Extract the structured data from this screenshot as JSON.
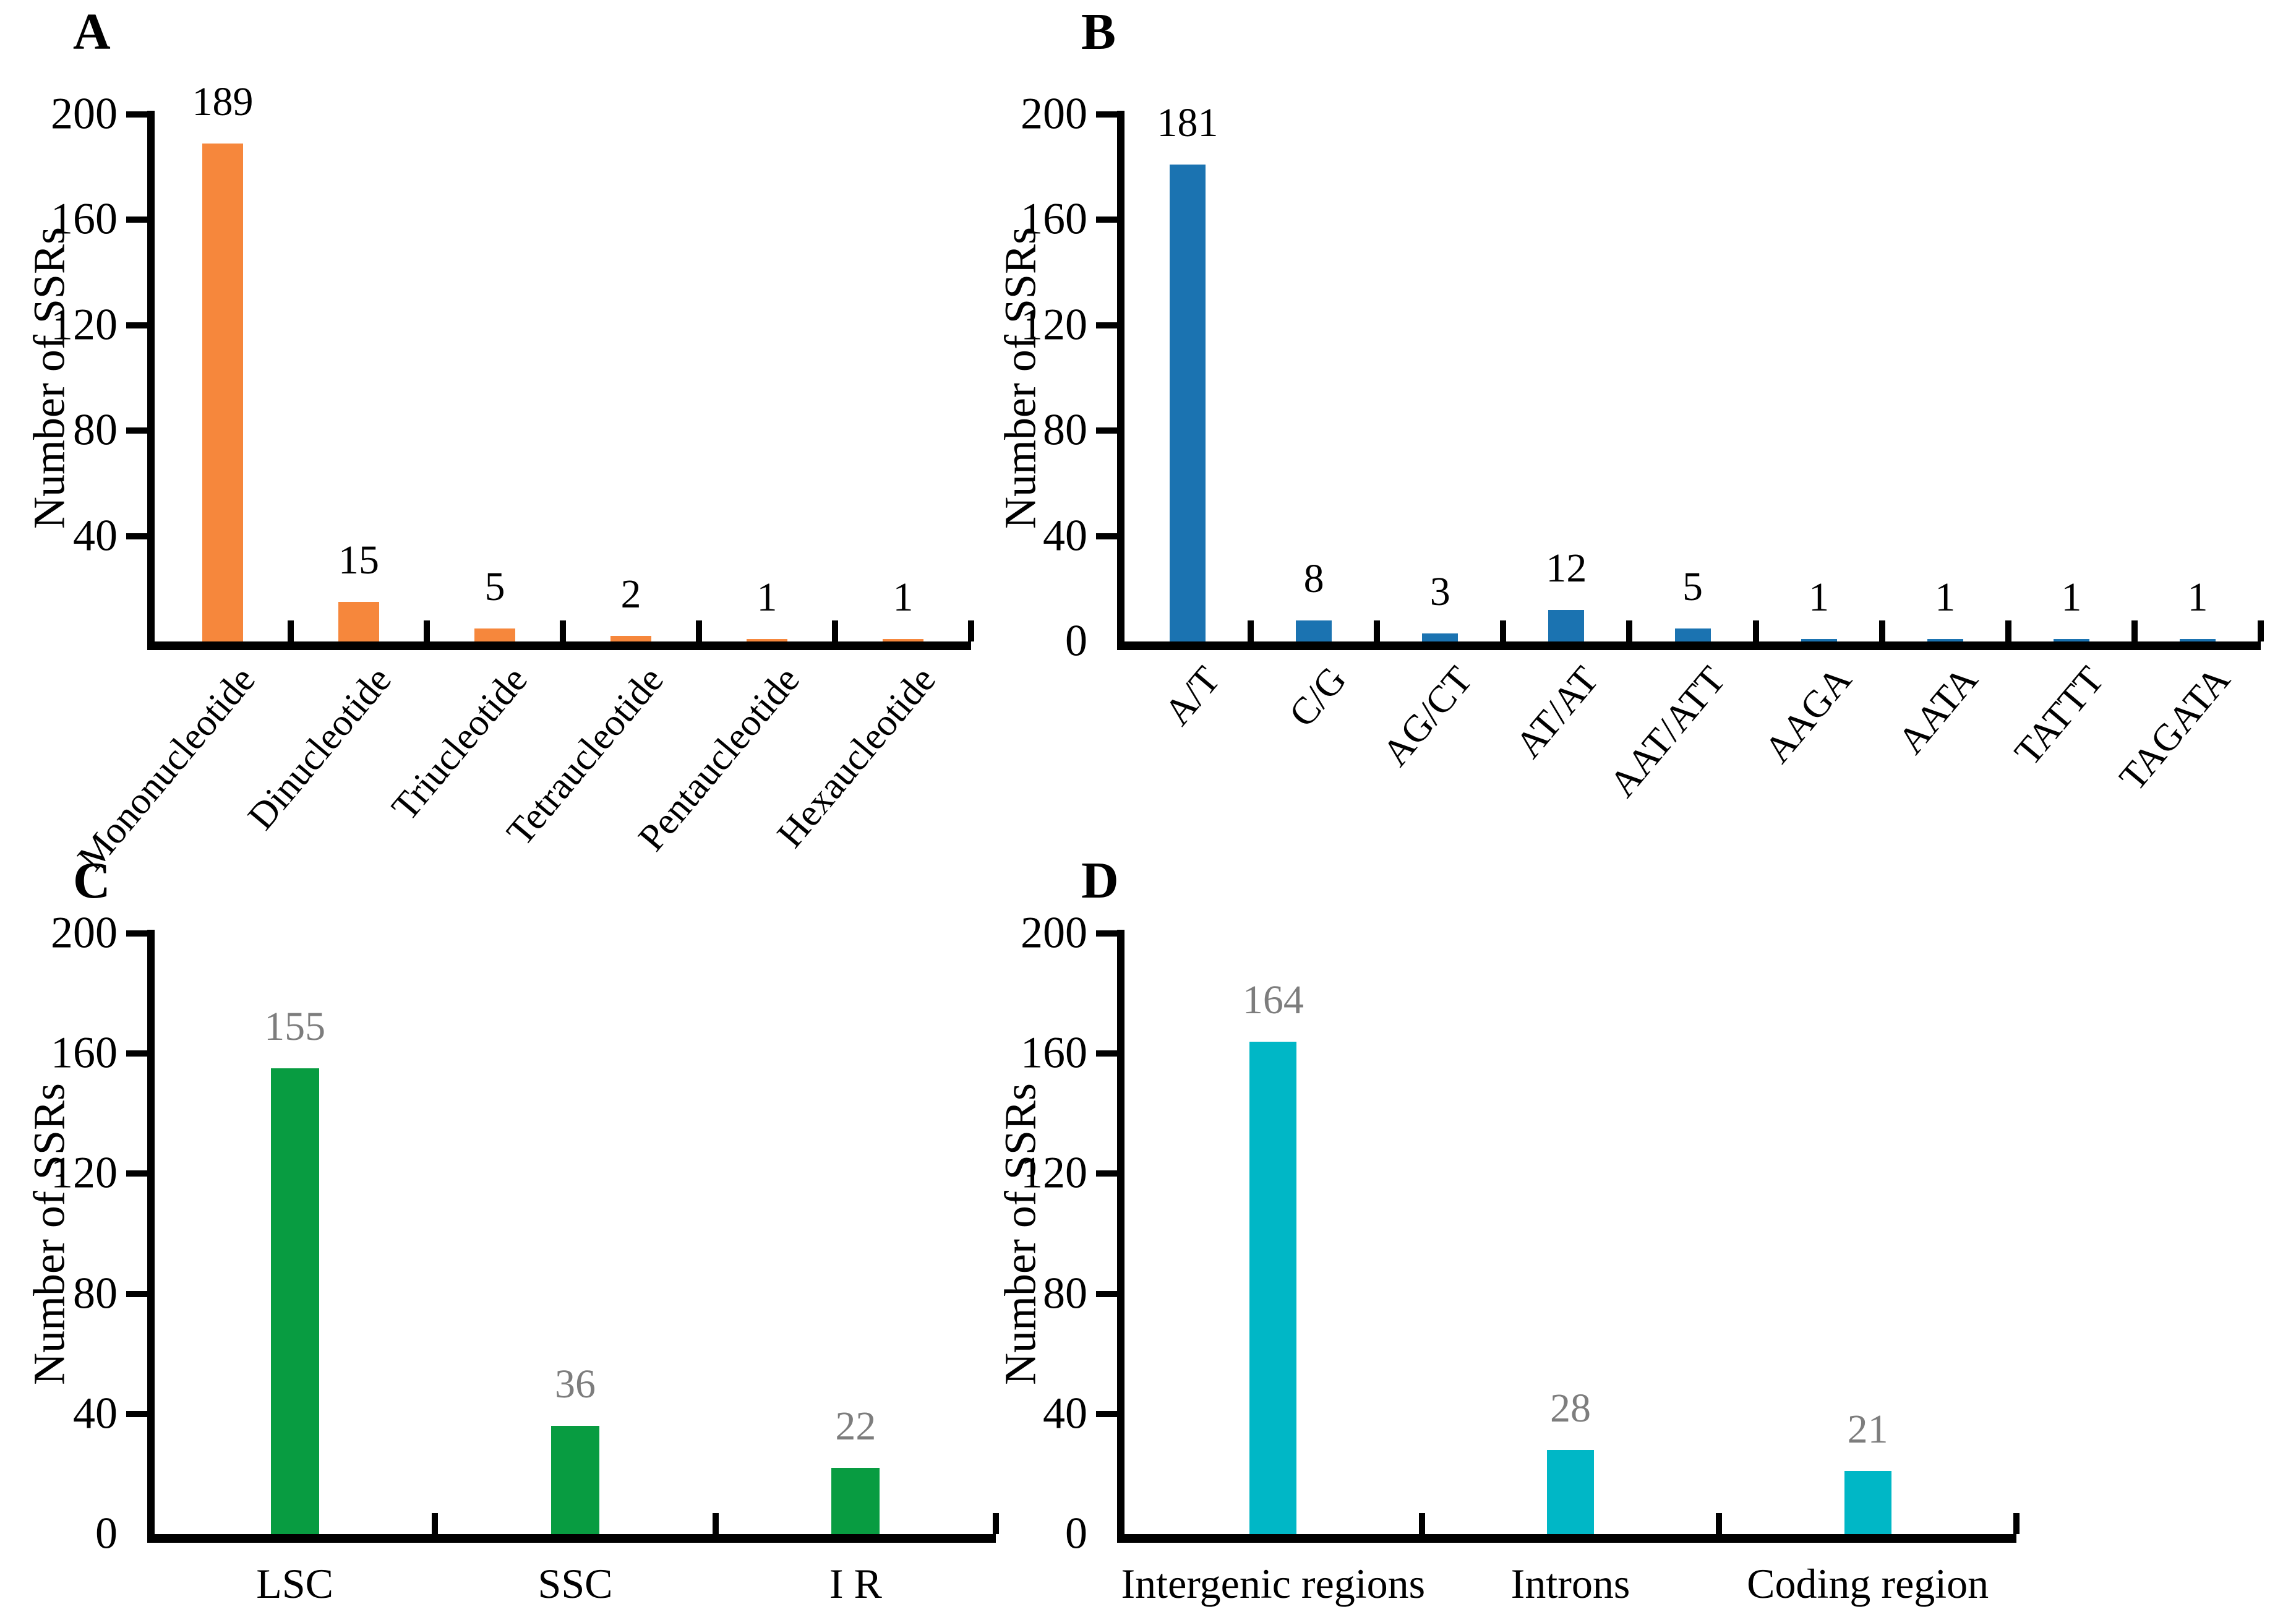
{
  "figure": {
    "background": "#ffffff",
    "axis_color": "#000000"
  },
  "chart_data": [
    {
      "panel": "A",
      "type": "bar",
      "title": "",
      "xlabel": "",
      "ylabel": "Number of SSRs",
      "ylim": [
        0,
        200
      ],
      "yticks": [
        200,
        160,
        120,
        80,
        40
      ],
      "grid": false,
      "legend": null,
      "bar_color": "#F6873C",
      "value_label_color": "#000000",
      "x_labels_rotated": true,
      "categories": [
        "Mononucleotide",
        "Dinucleotide",
        "Triucleotide",
        "Tetraucleotide",
        "Pentaucleotide",
        "Hexaucleotide"
      ],
      "values": [
        189,
        15,
        5,
        2,
        1,
        1
      ]
    },
    {
      "panel": "B",
      "type": "bar",
      "title": "",
      "xlabel": "",
      "ylabel": "Number of SSRs",
      "ylim": [
        0,
        200
      ],
      "yticks": [
        200,
        160,
        120,
        80,
        40,
        0
      ],
      "grid": false,
      "legend": null,
      "bar_color": "#1B73B1",
      "value_label_color": "#000000",
      "x_labels_rotated": true,
      "categories": [
        "A/T",
        "C/G",
        "AG/CT",
        "AT/AT",
        "AAT/ATT",
        "AAGA",
        "AATA",
        "TATTT",
        "TAGATA"
      ],
      "values": [
        181,
        8,
        3,
        12,
        5,
        1,
        1,
        1,
        1
      ]
    },
    {
      "panel": "C",
      "type": "bar",
      "title": "",
      "xlabel": "",
      "ylabel": "Number of SSRs",
      "ylim": [
        0,
        200
      ],
      "yticks": [
        200,
        160,
        120,
        80,
        40,
        0
      ],
      "grid": false,
      "legend": null,
      "bar_color": "#089C41",
      "value_label_color": "#7D7D7D",
      "x_labels_rotated": false,
      "categories": [
        "LSC",
        "SSC",
        "I R"
      ],
      "values": [
        155,
        36,
        22
      ]
    },
    {
      "panel": "D",
      "type": "bar",
      "title": "",
      "xlabel": "",
      "ylabel": "Number of SSRs",
      "ylim": [
        0,
        200
      ],
      "yticks": [
        200,
        160,
        120,
        80,
        40,
        0
      ],
      "grid": false,
      "legend": null,
      "bar_color": "#00B7C6",
      "value_label_color": "#7D7D7D",
      "x_labels_rotated": false,
      "categories": [
        "Intergenic regions",
        "Introns",
        "Coding region"
      ],
      "values": [
        164,
        28,
        21
      ]
    }
  ]
}
